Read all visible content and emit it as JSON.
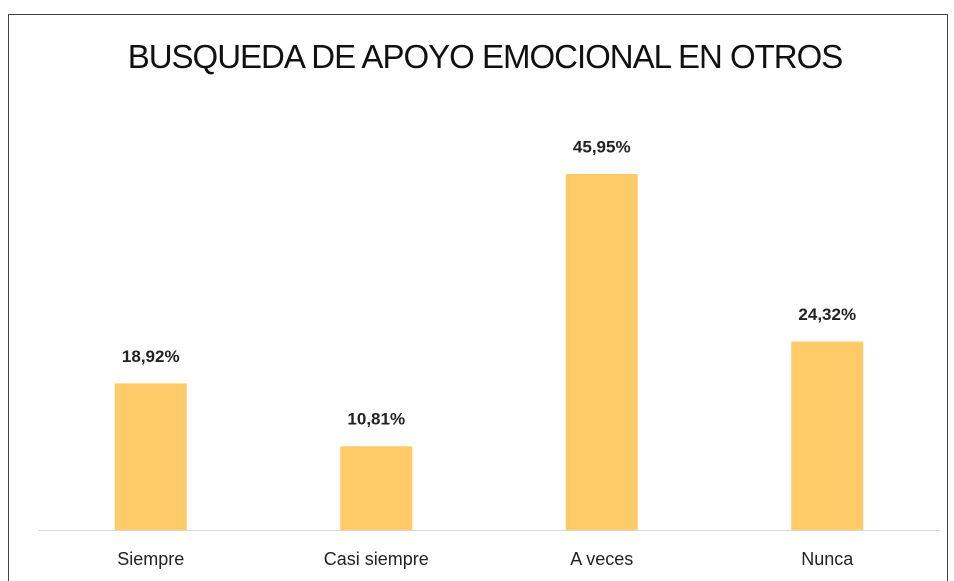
{
  "chart_data": {
    "type": "bar",
    "title": "BUSQUEDA DE APOYO EMOCIONAL EN OTROS",
    "categories": [
      "Siempre",
      "Casi siempre",
      "A veces",
      "Nunca"
    ],
    "values": [
      18.92,
      10.81,
      45.95,
      24.32
    ],
    "value_labels": [
      "18,92%",
      "10,81%",
      "45,95%",
      "24,32%"
    ],
    "color": "#ffca68"
  }
}
